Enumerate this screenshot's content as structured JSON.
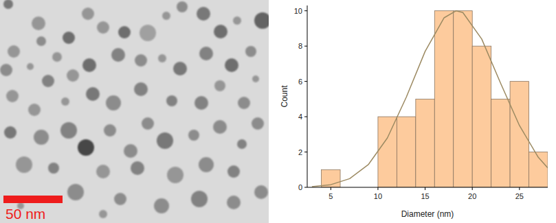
{
  "image": {
    "scale_bar_label": "50 nm"
  },
  "chart_data": {
    "type": "histogram",
    "x_label": "Diameter (nm)",
    "y_label": "Count",
    "bins": [
      4,
      6,
      8,
      10,
      12,
      14,
      16,
      18,
      20,
      22,
      24,
      26,
      28
    ],
    "counts": [
      1,
      0,
      0,
      4,
      4,
      5,
      10,
      10,
      8,
      5,
      6,
      2
    ],
    "color": "#fdcb9d",
    "xlim": [
      2.5,
      28
    ],
    "ylim": [
      0,
      10.3
    ],
    "xticks": [
      5,
      10,
      15,
      20,
      25
    ],
    "yticks": [
      0,
      2,
      4,
      6,
      8,
      10
    ],
    "series": [
      {
        "type": "line",
        "color": "#9c8a62",
        "x": [
          3,
          5,
          7,
          9,
          11,
          13,
          15,
          17,
          18.3,
          19,
          21,
          23,
          25,
          27,
          28
        ],
        "values": [
          0.04,
          0.15,
          0.49,
          1.3,
          2.8,
          5.1,
          7.7,
          9.6,
          10,
          9.9,
          8.4,
          5.9,
          3.5,
          1.7,
          1.1
        ]
      }
    ]
  }
}
